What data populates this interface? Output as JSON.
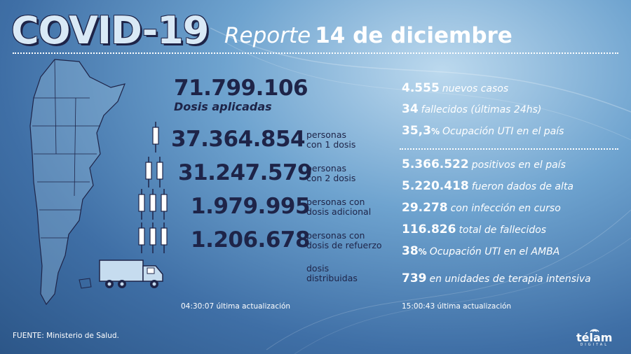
{
  "title": {
    "main": "COVID-19",
    "report": "Reporte",
    "date": "14 de diciembre"
  },
  "vaccines": {
    "total": {
      "value": "71.799.106",
      "label": "Dosis aplicadas"
    },
    "rows": [
      {
        "value": "37.364.854",
        "label1": "personas",
        "label2": "con 1 dosis",
        "icon": "syringe-icon",
        "syringes": 1
      },
      {
        "value": "31.247.579",
        "label1": "personas",
        "label2": "con 2 dosis",
        "icon": "syringe-icon",
        "syringes": 2
      },
      {
        "value": "1.979.995",
        "label1": "personas con",
        "label2": "dosis adicional",
        "icon": "syringe-icon",
        "syringes": 3
      },
      {
        "value": "1.206.678",
        "label1": "personas con",
        "label2": "dosis de refuerzo",
        "icon": "syringe-icon",
        "syringes": 3
      }
    ],
    "distributed": {
      "label1": "dosis",
      "label2": "distribuidas",
      "icon": "truck-icon"
    },
    "updated_time": "04:30:07",
    "updated_label": "última actualización"
  },
  "cases": {
    "daily": [
      {
        "value": "4.555",
        "label": "nuevos casos"
      },
      {
        "value": "34",
        "label": "fallecidos (últimas 24hs)"
      },
      {
        "value": "35,3",
        "unit": "%",
        "label": "Ocupación UTI en el país"
      }
    ],
    "totals": [
      {
        "value": "5.366.522",
        "label": "positivos en el país"
      },
      {
        "value": "5.220.418",
        "label": "fueron dados de alta"
      },
      {
        "value": "29.278",
        "label": "con infección en curso"
      },
      {
        "value": "116.826",
        "label": "total de fallecidos"
      },
      {
        "value": "38",
        "unit": "%",
        "label": "Ocupación UTI en el AMBA"
      },
      {
        "value": "739",
        "label": "en unidades de terapia intensiva"
      }
    ],
    "updated_time": "15:00:43",
    "updated_label": "última actualización"
  },
  "footer": {
    "source": "FUENTE: Ministerio de Salud."
  },
  "logo": {
    "name": "télam",
    "sub": "DIGITAL"
  },
  "colors": {
    "navy": "#1e2448",
    "white": "#ffffff",
    "bg_light": "#bcd9ee",
    "bg_dark": "#2c5688"
  }
}
